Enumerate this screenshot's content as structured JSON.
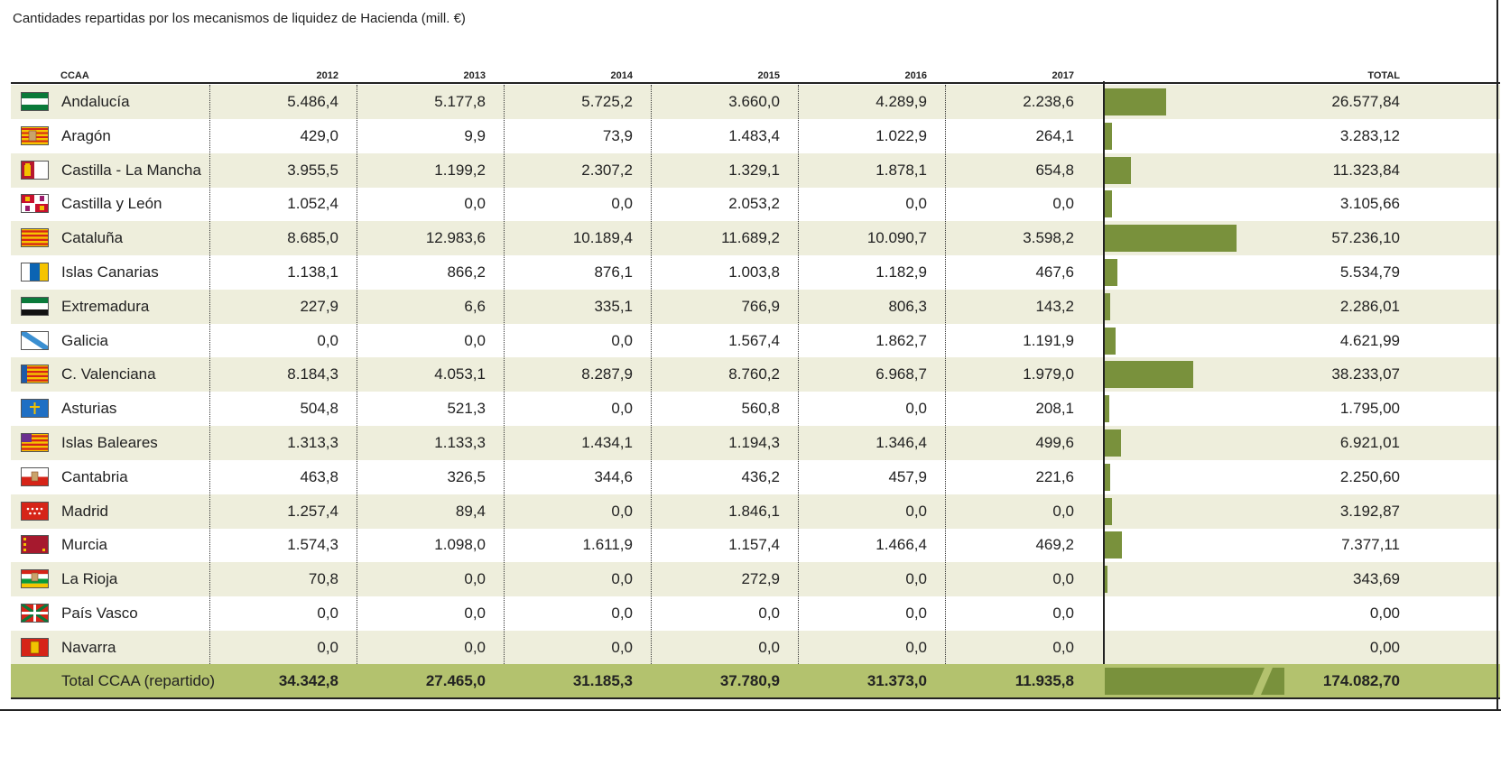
{
  "title": "Cantidades repartidas por los mecanismos de liquidez de Hacienda (mill. €)",
  "chart_data": {
    "type": "table",
    "title": "Cantidades repartidas por los mecanismos de liquidez de Hacienda (mill. €)",
    "columns": [
      "CCAA",
      "2012",
      "2013",
      "2014",
      "2015",
      "2016",
      "2017",
      "TOTAL"
    ],
    "rows": [
      {
        "name": "Andalucía",
        "flag": "andalucia-flag",
        "cells": [
          "5.486,4",
          "5.177,8",
          "5.725,2",
          "3.660,0",
          "4.289,9",
          "2.238,6"
        ],
        "total": "26.577,84",
        "total_value": 26577.84
      },
      {
        "name": "Aragón",
        "flag": "aragon-flag",
        "cells": [
          "429,0",
          "9,9",
          "73,9",
          "1.483,4",
          "1.022,9",
          "264,1"
        ],
        "total": "3.283,12",
        "total_value": 3283.12
      },
      {
        "name": "Castilla - La Mancha",
        "flag": "castilla-la-mancha-flag",
        "cells": [
          "3.955,5",
          "1.199,2",
          "2.307,2",
          "1.329,1",
          "1.878,1",
          "654,8"
        ],
        "total": "11.323,84",
        "total_value": 11323.84
      },
      {
        "name": "Castilla y León",
        "flag": "castilla-y-leon-flag",
        "cells": [
          "1.052,4",
          "0,0",
          "0,0",
          "2.053,2",
          "0,0",
          "0,0"
        ],
        "total": "3.105,66",
        "total_value": 3105.66
      },
      {
        "name": "Cataluña",
        "flag": "cataluna-flag",
        "cells": [
          "8.685,0",
          "12.983,6",
          "10.189,4",
          "11.689,2",
          "10.090,7",
          "3.598,2"
        ],
        "total": "57.236,10",
        "total_value": 57236.1
      },
      {
        "name": "Islas Canarias",
        "flag": "canarias-flag",
        "cells": [
          "1.138,1",
          "866,2",
          "876,1",
          "1.003,8",
          "1.182,9",
          "467,6"
        ],
        "total": "5.534,79",
        "total_value": 5534.79
      },
      {
        "name": "Extremadura",
        "flag": "extremadura-flag",
        "cells": [
          "227,9",
          "6,6",
          "335,1",
          "766,9",
          "806,3",
          "143,2"
        ],
        "total": "2.286,01",
        "total_value": 2286.01
      },
      {
        "name": "Galicia",
        "flag": "galicia-flag",
        "cells": [
          "0,0",
          "0,0",
          "0,0",
          "1.567,4",
          "1.862,7",
          "1.191,9"
        ],
        "total": "4.621,99",
        "total_value": 4621.99
      },
      {
        "name": "C. Valenciana",
        "flag": "valenciana-flag",
        "cells": [
          "8.184,3",
          "4.053,1",
          "8.287,9",
          "8.760,2",
          "6.968,7",
          "1.979,0"
        ],
        "total": "38.233,07",
        "total_value": 38233.07
      },
      {
        "name": "Asturias",
        "flag": "asturias-flag",
        "cells": [
          "504,8",
          "521,3",
          "0,0",
          "560,8",
          "0,0",
          "208,1"
        ],
        "total": "1.795,00",
        "total_value": 1795.0
      },
      {
        "name": "Islas Baleares",
        "flag": "baleares-flag",
        "cells": [
          "1.313,3",
          "1.133,3",
          "1.434,1",
          "1.194,3",
          "1.346,4",
          "499,6"
        ],
        "total": "6.921,01",
        "total_value": 6921.01
      },
      {
        "name": "Cantabria",
        "flag": "cantabria-flag",
        "cells": [
          "463,8",
          "326,5",
          "344,6",
          "436,2",
          "457,9",
          "221,6"
        ],
        "total": "2.250,60",
        "total_value": 2250.6
      },
      {
        "name": "Madrid",
        "flag": "madrid-flag",
        "cells": [
          "1.257,4",
          "89,4",
          "0,0",
          "1.846,1",
          "0,0",
          "0,0"
        ],
        "total": "3.192,87",
        "total_value": 3192.87
      },
      {
        "name": "Murcia",
        "flag": "murcia-flag",
        "cells": [
          "1.574,3",
          "1.098,0",
          "1.611,9",
          "1.157,4",
          "1.466,4",
          "469,2"
        ],
        "total": "7.377,11",
        "total_value": 7377.11
      },
      {
        "name": "La Rioja",
        "flag": "la-rioja-flag",
        "cells": [
          "70,8",
          "0,0",
          "0,0",
          "272,9",
          "0,0",
          "0,0"
        ],
        "total": "343,69",
        "total_value": 343.69
      },
      {
        "name": "País Vasco",
        "flag": "pais-vasco-flag",
        "cells": [
          "0,0",
          "0,0",
          "0,0",
          "0,0",
          "0,0",
          "0,0"
        ],
        "total": "0,00",
        "total_value": 0
      },
      {
        "name": "Navarra",
        "flag": "navarra-flag",
        "cells": [
          "0,0",
          "0,0",
          "0,0",
          "0,0",
          "0,0",
          "0,0"
        ],
        "total": "0,00",
        "total_value": 0
      }
    ],
    "total_row": {
      "name": "Total CCAA (repartido)",
      "cells": [
        "34.342,8",
        "27.465,0",
        "31.185,3",
        "37.780,9",
        "31.373,0",
        "11.935,8"
      ],
      "total": "174.082,70",
      "total_value": 174082.7
    },
    "bar_scale_max": 57236.1,
    "colors": {
      "bar": "#79913c",
      "shade": "#eeeedc",
      "total_row": "#b3c26e"
    }
  }
}
